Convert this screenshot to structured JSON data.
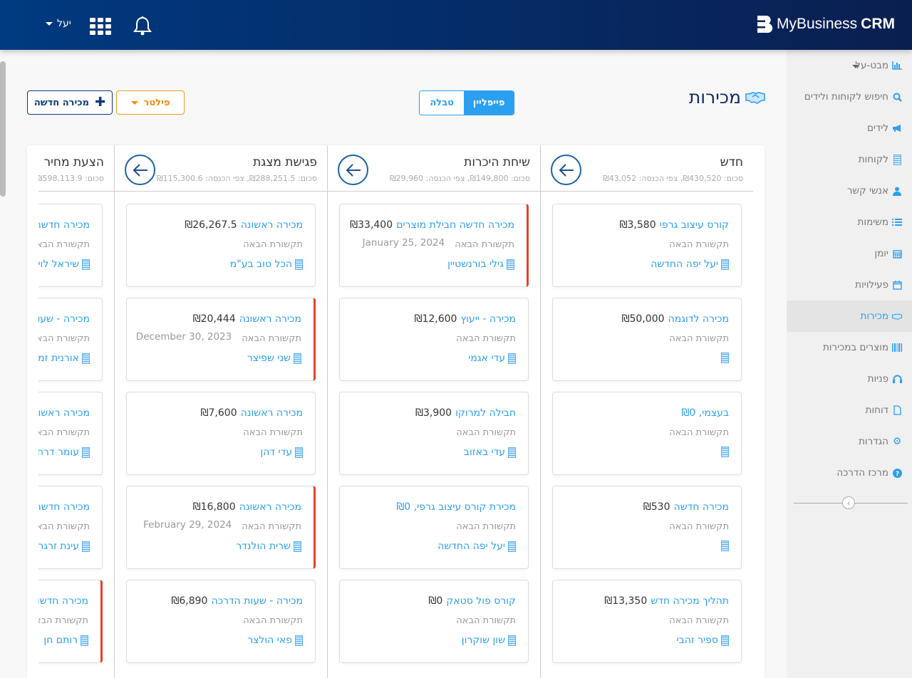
{
  "header": {
    "logo_text": "MyBusiness",
    "logo_bold": "CRM",
    "user_name": "יעל"
  },
  "sidebar": {
    "items": [
      {
        "label": "מבט-על",
        "icon": "bar-chart-icon"
      },
      {
        "label": "חיפוש לקוחות ולידים",
        "icon": "search-icon"
      },
      {
        "label": "לידים",
        "icon": "megaphone-icon"
      },
      {
        "label": "לקוחות",
        "icon": "building-icon"
      },
      {
        "label": "אנשי קשר",
        "icon": "user-icon"
      },
      {
        "label": "משימות",
        "icon": "list-icon"
      },
      {
        "label": "יומן",
        "icon": "calendar-icon"
      },
      {
        "label": "פעילויות",
        "icon": "calendar-empty-icon"
      },
      {
        "label": "מכירות",
        "icon": "handshake-icon",
        "active": true
      },
      {
        "label": "מוצרים במכירות",
        "icon": "barcode-icon"
      },
      {
        "label": "פניות",
        "icon": "headset-icon"
      },
      {
        "label": "דוחות",
        "icon": "file-icon"
      },
      {
        "label": "הגדרות",
        "icon": "gear-icon"
      },
      {
        "label": "מרכז הדרכה",
        "icon": "question-icon"
      }
    ]
  },
  "page": {
    "title": "מכירות",
    "view_pipeline": "פייפליין",
    "view_table": "טבלה",
    "filter_label": "פילטר",
    "new_sale_label": "מכירה חדשה"
  },
  "colors": {
    "accent": "#2b9ff0",
    "navy": "#0a3a7a",
    "filter": "#f59a1b",
    "overdue": "#e8412c"
  },
  "next_label": "תקשורת הבאה",
  "columns": [
    {
      "title": "חדש",
      "summary": "סכום: ₪430,520, צפי הכנסה: ₪43,052",
      "cards": [
        {
          "title": "קורס עיצוב גרפי",
          "amount": "₪3,580",
          "company": "יעל יפה החדשה"
        },
        {
          "title": "מכירה לדוגמה",
          "amount": "₪50,000",
          "company": ""
        },
        {
          "title": "בעצמי, ₪0",
          "amount": "",
          "company": ""
        },
        {
          "title": "מכירה חדשה",
          "amount": "₪530",
          "company": ""
        },
        {
          "title": "תהליך מכירה חדש",
          "amount": "₪13,350",
          "company": "ספיר זהבי"
        }
      ]
    },
    {
      "title": "שיחת היכרות",
      "summary": "סכום: ₪149,800, צפי הכנסה: ₪29,960",
      "cards": [
        {
          "title": "מכירה חדשה חבילת מוצרים",
          "amount": "₪33,400",
          "date": "January 25, 2024",
          "company": "גילי בורנשטיין",
          "overdue": true
        },
        {
          "title": "מכירה - ייעוץ",
          "amount": "₪12,600",
          "company": "עדי אגמי"
        },
        {
          "title": "חבילה למרוקו",
          "amount": "₪3,900",
          "company": "עדי באזוב"
        },
        {
          "title": "מכירת קורס עיצוב גרפי, ₪0",
          "amount": "",
          "company": "יעל יפה החדשה"
        },
        {
          "title": "קורס פול סטאק",
          "amount": "₪0",
          "company": "שון שוקרון"
        }
      ]
    },
    {
      "title": "פגישת מצגת",
      "summary": "סכום: ₪288,251.5, צפי הכנסה: ₪115,300.6",
      "cards": [
        {
          "title": "מכירה ראשונה",
          "amount": "₪26,267.5",
          "company": "הכל טוב בע\"מ"
        },
        {
          "title": "מכירה ראשונה",
          "amount": "₪20,444",
          "date": "December 30, 2023",
          "company": "שני שפיצר",
          "overdue": true
        },
        {
          "title": "מכירה ראשונה",
          "amount": "₪7,600",
          "company": "עדי דהן"
        },
        {
          "title": "מכירה ראשונה",
          "amount": "₪16,800",
          "date": "February 29, 2024",
          "company": "שרית הולנדר",
          "overdue": true
        },
        {
          "title": "מכירה - שעות הדרכה",
          "amount": "₪6,890",
          "company": "פאי הולצר"
        }
      ]
    },
    {
      "title": "הצעת מחיר",
      "summary": "סכום: ₪598,113.9",
      "cards": [
        {
          "title": "מכירה חדשה",
          "amount": "",
          "company": "שיראל לוי"
        },
        {
          "title": "מכירה - שעו",
          "amount": "",
          "company": "אורנית זמ"
        },
        {
          "title": "מכירה ראשו",
          "amount": "",
          "company": "עומר דרח"
        },
        {
          "title": "מכירה חדשה",
          "amount": "",
          "company": "עינת זרגר"
        },
        {
          "title": "מכירה חדשו",
          "amount": "",
          "company": "רותם חן",
          "overdue": true
        }
      ]
    }
  ]
}
